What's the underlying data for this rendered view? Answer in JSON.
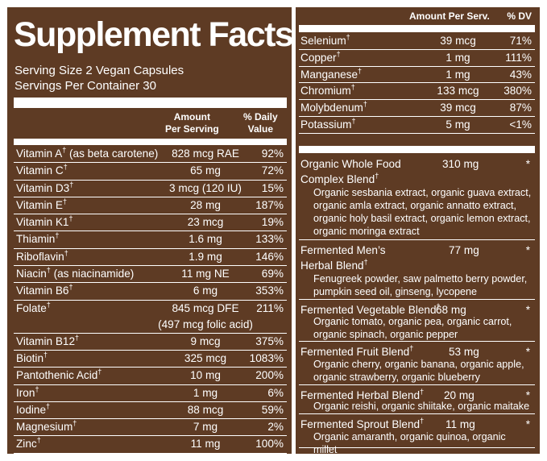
{
  "left": {
    "title": "Supplement Facts",
    "serving_size": "Serving Size 2 Vegan Capsules",
    "servings_per_container": "Servings Per Container 30",
    "col_amount": [
      "Amount",
      "Per Serving"
    ],
    "col_dv": [
      "% Daily",
      "Value"
    ],
    "nutrients": [
      {
        "name": "Vitamin A",
        "mark": "†",
        "note": " (as beta carotene)",
        "amount": "828 mcg RAE",
        "dv": "92%"
      },
      {
        "name": "Vitamin C",
        "mark": "†",
        "note": "",
        "amount": "65 mg",
        "dv": "72%"
      },
      {
        "name": "Vitamin D3",
        "mark": "†",
        "note": "",
        "amount": "3 mcg (120 IU)",
        "dv": "15%"
      },
      {
        "name": "Vitamin E",
        "mark": "†",
        "note": "",
        "amount": "28 mg",
        "dv": "187%"
      },
      {
        "name": "Vitamin K1",
        "mark": "†",
        "note": "",
        "amount": "23 mcg",
        "dv": "19%"
      },
      {
        "name": "Thiamin",
        "mark": "†",
        "note": "",
        "amount": "1.6 mg",
        "dv": "133%"
      },
      {
        "name": "Riboflavin",
        "mark": "†",
        "note": "",
        "amount": "1.9 mg",
        "dv": "146%"
      },
      {
        "name": "Niacin",
        "mark": "†",
        "note": " (as niacinamide)",
        "amount": "11 mg NE",
        "dv": "69%"
      },
      {
        "name": "Vitamin B6",
        "mark": "†",
        "note": "",
        "amount": "6 mg",
        "dv": "353%"
      },
      {
        "name": "Folate",
        "mark": "†",
        "note": "",
        "amount": "845 mcg DFE",
        "amount2": "(497 mcg folic acid)",
        "dv": "211%"
      },
      {
        "name": "Vitamin B12",
        "mark": "†",
        "note": "",
        "amount": "9 mcg",
        "dv": "375%"
      },
      {
        "name": "Biotin",
        "mark": "†",
        "note": "",
        "amount": "325 mcg",
        "dv": "1083%"
      },
      {
        "name": "Pantothenic Acid",
        "mark": "†",
        "note": "",
        "amount": "10 mg",
        "dv": "200%"
      },
      {
        "name": "Iron",
        "mark": "†",
        "note": "",
        "amount": "1 mg",
        "dv": "6%"
      },
      {
        "name": "Iodine",
        "mark": "†",
        "note": "",
        "amount": "88 mcg",
        "dv": "59%"
      },
      {
        "name": "Magnesium",
        "mark": "†",
        "note": "",
        "amount": "7 mg",
        "dv": "2%"
      },
      {
        "name": "Zinc",
        "mark": "†",
        "note": "",
        "amount": "11 mg",
        "dv": "100%"
      }
    ]
  },
  "right": {
    "col_amount": "Amount Per Serv.",
    "col_dv": "% DV",
    "minerals": [
      {
        "name": "Selenium",
        "mark": "†",
        "amount": "39 mcg",
        "dv": "71%"
      },
      {
        "name": "Copper",
        "mark": "†",
        "amount": "1 mg",
        "dv": "111%"
      },
      {
        "name": "Manganese",
        "mark": "†",
        "amount": "1 mg",
        "dv": "43%"
      },
      {
        "name": "Chromium",
        "mark": "†",
        "amount": "133 mcg",
        "dv": "380%"
      },
      {
        "name": "Molybdenum",
        "mark": "†",
        "amount": "39 mcg",
        "dv": "87%"
      },
      {
        "name": "Potassium",
        "mark": "†",
        "amount": "5 mg",
        "dv": "<1%"
      }
    ],
    "blends": [
      {
        "name1": "Organic Whole Food",
        "name2": "Complex Blend",
        "mark": "†",
        "amount": "310 mg",
        "dv": "*",
        "ingredients": "Organic sesbania extract, organic guava extract, organic amla extract, organic annatto extract, organic holy basil extract, organic lemon extract, organic moringa extract"
      },
      {
        "name1": "Fermented Men’s",
        "name2": "Herbal Blend",
        "mark": "†",
        "amount": "77 mg",
        "dv": "*",
        "ingredients": "Fenugreek powder, saw palmetto berry powder, pumpkin seed oil, ginseng, lycopene"
      },
      {
        "name1": "Fermented Vegetable Blend",
        "name2": "",
        "mark": "†",
        "amount": "68 mg",
        "dv": "*",
        "ingredients": "Organic tomato, organic pea, organic carrot, organic spinach, organic pepper"
      },
      {
        "name1": "Fermented Fruit Blend",
        "name2": "",
        "mark": "†",
        "amount": "53 mg",
        "dv": "*",
        "ingredients": "Organic cherry, organic banana, organic apple, organic strawberry, organic blueberry"
      },
      {
        "name1": "Fermented Herbal Blend",
        "name2": "",
        "mark": "†",
        "amount": "20 mg",
        "dv": "*",
        "ingredients": "Organic reishi, organic shiitake, organic maitake"
      },
      {
        "name1": "Fermented Sprout Blend",
        "name2": "",
        "mark": "†",
        "amount": "11 mg",
        "dv": "*",
        "ingredients": "Organic amaranth, organic quinoa, organic millet"
      }
    ]
  }
}
